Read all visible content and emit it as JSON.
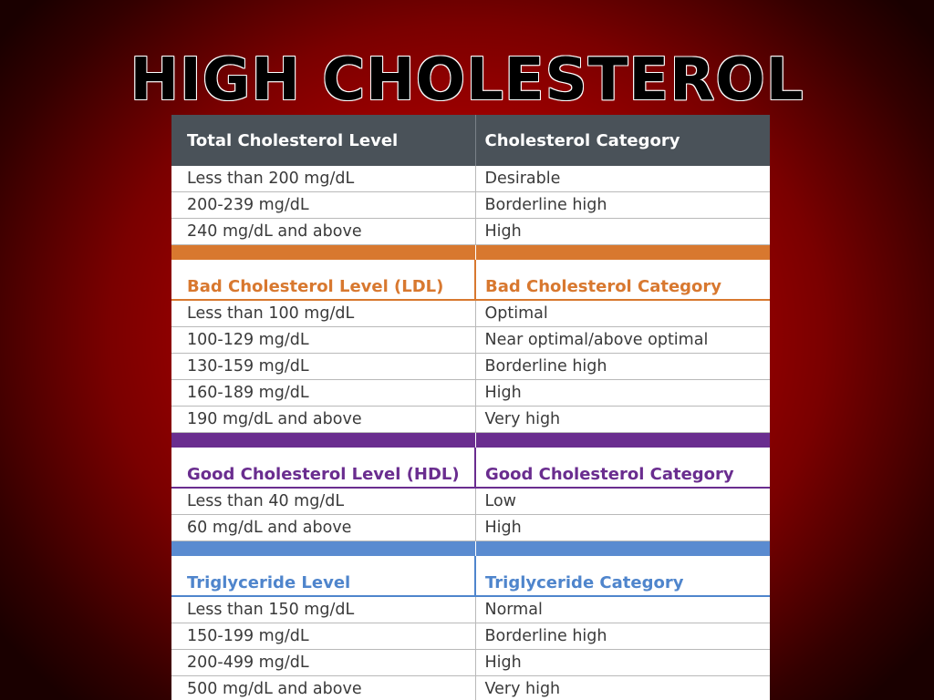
{
  "title": "HIGH CHOLESTEROL",
  "colors": {
    "background_center": "#d00000",
    "background_edge": "#1a0000",
    "header_bg": "#4a5259",
    "ldl_accent": "#d8782f",
    "hdl_accent": "#6a2d8f",
    "triglyceride_accent": "#4f85cc"
  },
  "table": {
    "total": {
      "headers": [
        "Total Cholesterol Level",
        "Cholesterol Category"
      ],
      "rows": [
        [
          "Less than 200 mg/dL",
          "Desirable"
        ],
        [
          "200-239 mg/dL",
          "Borderline high"
        ],
        [
          "240 mg/dL and above",
          "High"
        ]
      ]
    },
    "ldl": {
      "headers": [
        "Bad Cholesterol Level (LDL)",
        "Bad Cholesterol Category"
      ],
      "rows": [
        [
          "Less than 100 mg/dL",
          "Optimal"
        ],
        [
          "100-129 mg/dL",
          "Near optimal/above optimal"
        ],
        [
          "130-159 mg/dL",
          "Borderline high"
        ],
        [
          "160-189 mg/dL",
          "High"
        ],
        [
          "190 mg/dL and above",
          "Very high"
        ]
      ]
    },
    "hdl": {
      "headers": [
        "Good Cholesterol Level (HDL)",
        "Good Cholesterol Category"
      ],
      "rows": [
        [
          "Less than 40 mg/dL",
          "Low"
        ],
        [
          "60 mg/dL and above",
          "High"
        ]
      ]
    },
    "triglyceride": {
      "headers": [
        "Triglyceride Level",
        "Triglyceride Category"
      ],
      "rows": [
        [
          "Less than 150 mg/dL",
          "Normal"
        ],
        [
          "150-199 mg/dL",
          "Borderline high"
        ],
        [
          "200-499 mg/dL",
          "High"
        ],
        [
          "500 mg/dL and above",
          "Very high"
        ]
      ]
    }
  }
}
